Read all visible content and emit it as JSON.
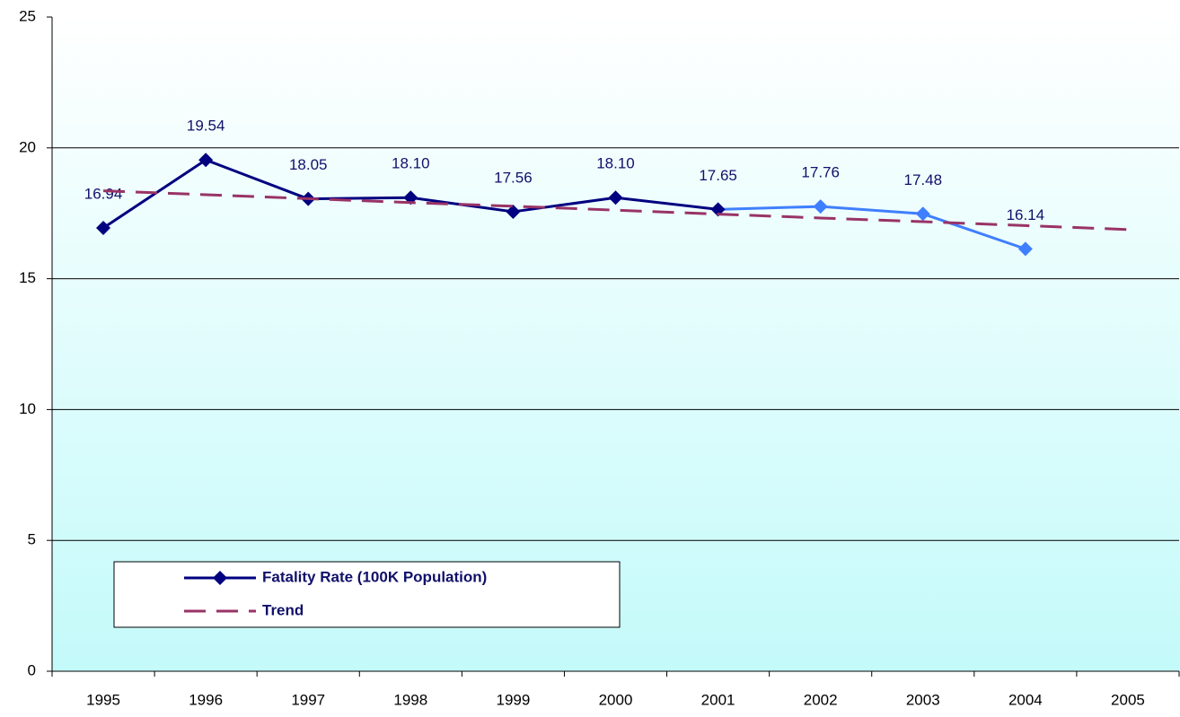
{
  "chart_data": {
    "type": "line",
    "categories": [
      "1995",
      "1996",
      "1997",
      "1998",
      "1999",
      "2000",
      "2001",
      "2002",
      "2003",
      "2004",
      "2005"
    ],
    "series": [
      {
        "name": "Fatality Rate (100K Population)",
        "color": "#000080",
        "point_colors": [
          "#000080",
          "#000080",
          "#000080",
          "#000080",
          "#000080",
          "#000080",
          "#000080",
          "#3f7fff",
          "#3f7fff",
          "#3f7fff",
          null
        ],
        "values": [
          16.94,
          19.54,
          18.05,
          18.1,
          17.56,
          18.1,
          17.65,
          17.76,
          17.48,
          16.14,
          null
        ],
        "value_labels": [
          "16.94",
          "19.54",
          "18.05",
          "18.10",
          "17.56",
          "18.10",
          "17.65",
          "17.76",
          "17.48",
          "16.14",
          null
        ],
        "markers": true
      },
      {
        "name": "Trend",
        "color": "#993366",
        "dashed": true,
        "values": [
          18.36,
          18.21,
          18.06,
          17.91,
          17.77,
          17.62,
          17.47,
          17.32,
          17.18,
          17.03,
          16.88
        ]
      }
    ],
    "ylim": [
      0,
      25
    ],
    "yticks": [
      0,
      5,
      10,
      15,
      20,
      25
    ],
    "grid": true,
    "legend": "lower left"
  }
}
